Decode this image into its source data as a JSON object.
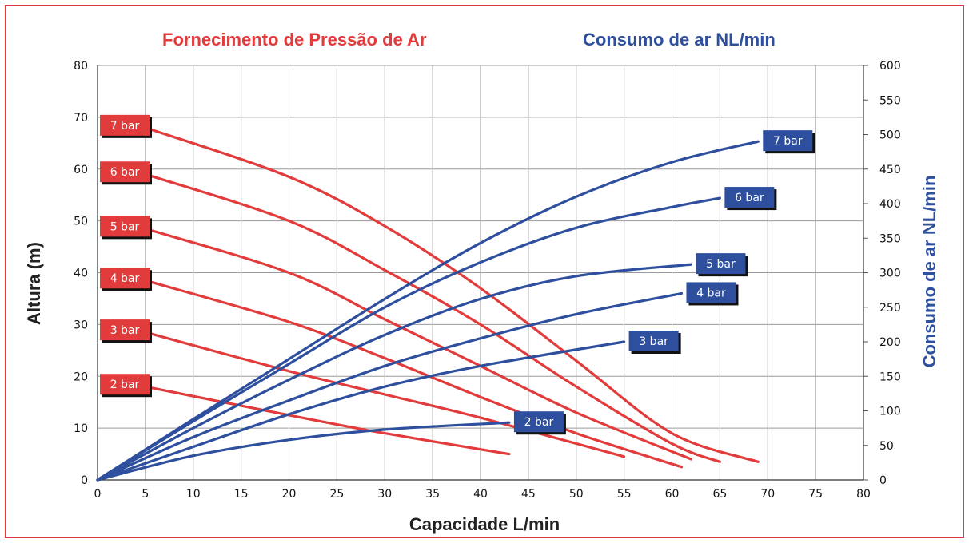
{
  "chart_data": {
    "type": "line",
    "title_left": "Fornecimento de Pressão de Ar",
    "title_right": "Consumo de ar NL/min",
    "xlabel": "Capacidade L/min",
    "ylabel": "Altura (m)",
    "y2label": "Consumo de ar NL/min",
    "xlim": [
      0,
      80
    ],
    "ylim": [
      0,
      80
    ],
    "y2lim": [
      0,
      600
    ],
    "x_ticks": [
      0,
      5,
      10,
      15,
      20,
      25,
      30,
      35,
      40,
      45,
      50,
      55,
      60,
      65,
      70,
      75,
      80
    ],
    "y_ticks": [
      0,
      10,
      20,
      30,
      40,
      50,
      60,
      70,
      80
    ],
    "y2_ticks": [
      0,
      50,
      100,
      150,
      200,
      250,
      300,
      350,
      400,
      450,
      500,
      550,
      600
    ],
    "grid": true,
    "colors": {
      "pressure": "#e23b3b",
      "consumption": "#2e4f9e"
    },
    "pressure_series": [
      {
        "name": "7 bar",
        "points": [
          [
            5,
            68
          ],
          [
            20,
            58.5
          ],
          [
            30,
            49
          ],
          [
            40,
            37
          ],
          [
            50,
            23
          ],
          [
            60,
            9
          ],
          [
            69,
            3.5
          ]
        ]
      },
      {
        "name": "6 bar",
        "points": [
          [
            5,
            59
          ],
          [
            20,
            50
          ],
          [
            30,
            40.5
          ],
          [
            40,
            30
          ],
          [
            50,
            18
          ],
          [
            60,
            7
          ],
          [
            65,
            3.5
          ]
        ]
      },
      {
        "name": "5 bar",
        "points": [
          [
            5,
            48.5
          ],
          [
            20,
            40
          ],
          [
            30,
            31
          ],
          [
            40,
            22
          ],
          [
            50,
            13
          ],
          [
            62,
            4
          ]
        ]
      },
      {
        "name": "4 bar",
        "points": [
          [
            5,
            38.5
          ],
          [
            20,
            30.5
          ],
          [
            30,
            23.5
          ],
          [
            40,
            16
          ],
          [
            50,
            9
          ],
          [
            61,
            2.5
          ]
        ]
      },
      {
        "name": "3 bar",
        "points": [
          [
            5,
            28.5
          ],
          [
            20,
            21
          ],
          [
            30,
            16.5
          ],
          [
            40,
            12
          ],
          [
            55,
            4.5
          ]
        ]
      },
      {
        "name": "2 bar",
        "points": [
          [
            5,
            18
          ],
          [
            20,
            12.5
          ],
          [
            30,
            9
          ],
          [
            43,
            5
          ]
        ]
      }
    ],
    "consumption_series": [
      {
        "name": "7 bar",
        "points": [
          [
            0,
            0
          ],
          [
            10,
            88
          ],
          [
            20,
            175
          ],
          [
            30,
            262
          ],
          [
            40,
            343
          ],
          [
            50,
            410
          ],
          [
            60,
            460
          ],
          [
            69,
            490
          ]
        ]
      },
      {
        "name": "6 bar",
        "points": [
          [
            0,
            0
          ],
          [
            10,
            85
          ],
          [
            20,
            168
          ],
          [
            30,
            250
          ],
          [
            40,
            315
          ],
          [
            50,
            365
          ],
          [
            60,
            395
          ],
          [
            65,
            408
          ]
        ]
      },
      {
        "name": "5 bar",
        "points": [
          [
            0,
            0
          ],
          [
            10,
            75
          ],
          [
            20,
            145
          ],
          [
            30,
            210
          ],
          [
            40,
            262
          ],
          [
            50,
            295
          ],
          [
            62,
            312
          ]
        ]
      },
      {
        "name": "4 bar",
        "points": [
          [
            0,
            0
          ],
          [
            10,
            62
          ],
          [
            20,
            115
          ],
          [
            30,
            165
          ],
          [
            40,
            205
          ],
          [
            50,
            240
          ],
          [
            61,
            270
          ]
        ]
      },
      {
        "name": "3 bar",
        "points": [
          [
            0,
            0
          ],
          [
            10,
            48
          ],
          [
            20,
            95
          ],
          [
            30,
            135
          ],
          [
            40,
            165
          ],
          [
            55,
            200
          ]
        ]
      },
      {
        "name": "2 bar",
        "points": [
          [
            0,
            0
          ],
          [
            10,
            35
          ],
          [
            20,
            58
          ],
          [
            30,
            73
          ],
          [
            43,
            83
          ]
        ]
      }
    ]
  }
}
